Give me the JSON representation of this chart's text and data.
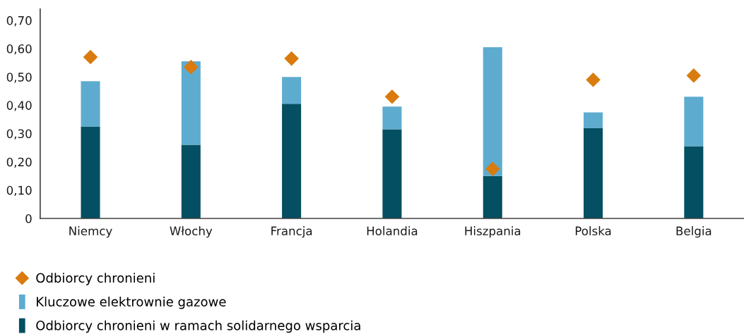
{
  "chart_data": {
    "type": "bar",
    "stacked": true,
    "categories": [
      "Niemcy",
      "Włochy",
      "Francja",
      "Holandia",
      "Hiszpania",
      "Polska",
      "Belgia"
    ],
    "series": [
      {
        "name": "Odbiorcy chronieni w ramach solidarnego wsparcia",
        "color": "#044f62",
        "values": [
          0.325,
          0.26,
          0.405,
          0.315,
          0.15,
          0.32,
          0.255
        ]
      },
      {
        "name": "Kluczowe elektrownie gazowe",
        "color": "#5eabd0",
        "values": [
          0.16,
          0.295,
          0.095,
          0.08,
          0.455,
          0.055,
          0.175
        ]
      },
      {
        "name": "Odbiorcy chronieni",
        "type": "scatter",
        "marker": "diamond",
        "color": "#d97b0d",
        "values": [
          0.57,
          0.535,
          0.565,
          0.43,
          0.175,
          0.49,
          0.505
        ]
      }
    ],
    "ylim": [
      0,
      0.74
    ],
    "yticks": [
      0,
      {
        "value": 0.1,
        "label": "0,10"
      },
      {
        "value": 0.2,
        "label": "0,20"
      },
      {
        "value": 0.3,
        "label": "0,30"
      },
      {
        "value": 0.4,
        "label": "0,40"
      },
      {
        "value": 0.5,
        "label": "0,50"
      },
      {
        "value": 0.6,
        "label": "0,60"
      },
      {
        "value": 0.7,
        "label": "0,70"
      }
    ],
    "grid": false,
    "legend": "bottom left"
  }
}
